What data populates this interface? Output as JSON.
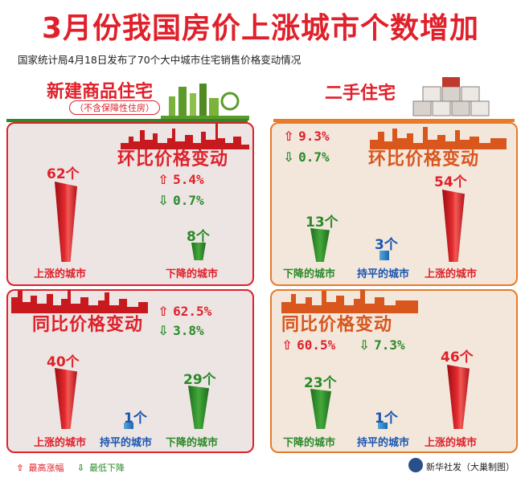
{
  "header": {
    "title": "3月份我国房价上涨城市个数增加",
    "subtitle": "国家统计局4月18日发布了70个大中城市住宅销售价格变动情况"
  },
  "new_homes": {
    "title": "新建商品住宅",
    "note": "（不含保障性住房）",
    "mom": {
      "title": "环比价格变动",
      "max_rise": "5.4%",
      "max_fall": "0.7%",
      "up_count": "62个",
      "up_label": "上涨的城市",
      "down_count": "8个",
      "down_label": "下降的城市",
      "up_value": 62,
      "down_value": 8
    },
    "yoy": {
      "title": "同比价格变动",
      "max_rise": "62.5%",
      "max_fall": "3.8%",
      "up_count": "40个",
      "up_label": "上涨的城市",
      "flat_count": "1个",
      "flat_label": "持平的城市",
      "down_count": "29个",
      "down_label": "下降的城市",
      "up_value": 40,
      "flat_value": 1,
      "down_value": 29
    }
  },
  "second_hand": {
    "title": "二手住宅",
    "mom": {
      "title": "环比价格变动",
      "max_rise": "9.3%",
      "max_fall": "0.7%",
      "down_count": "13个",
      "down_label": "下降的城市",
      "flat_count": "3个",
      "flat_label": "持平的城市",
      "up_count": "54个",
      "up_label": "上涨的城市",
      "down_value": 13,
      "flat_value": 3,
      "up_value": 54
    },
    "yoy": {
      "title": "同比价格变动",
      "max_rise": "60.5%",
      "max_fall": "7.3%",
      "down_count": "23个",
      "down_label": "下降的城市",
      "flat_count": "1个",
      "flat_label": "持平的城市",
      "up_count": "46个",
      "up_label": "上涨的城市",
      "down_value": 23,
      "flat_value": 1,
      "up_value": 46
    }
  },
  "legend": {
    "max_rise": "最高涨幅",
    "max_fall": "最低下降"
  },
  "credit": "新华社发（大巢制图）",
  "colors": {
    "red": "#e0202a",
    "green": "#2a8a2a",
    "blue": "#1a56b0",
    "orange": "#d9561c"
  },
  "icons": {
    "rise": "arrow-up-outline-icon",
    "fall": "arrow-down-outline-icon"
  }
}
